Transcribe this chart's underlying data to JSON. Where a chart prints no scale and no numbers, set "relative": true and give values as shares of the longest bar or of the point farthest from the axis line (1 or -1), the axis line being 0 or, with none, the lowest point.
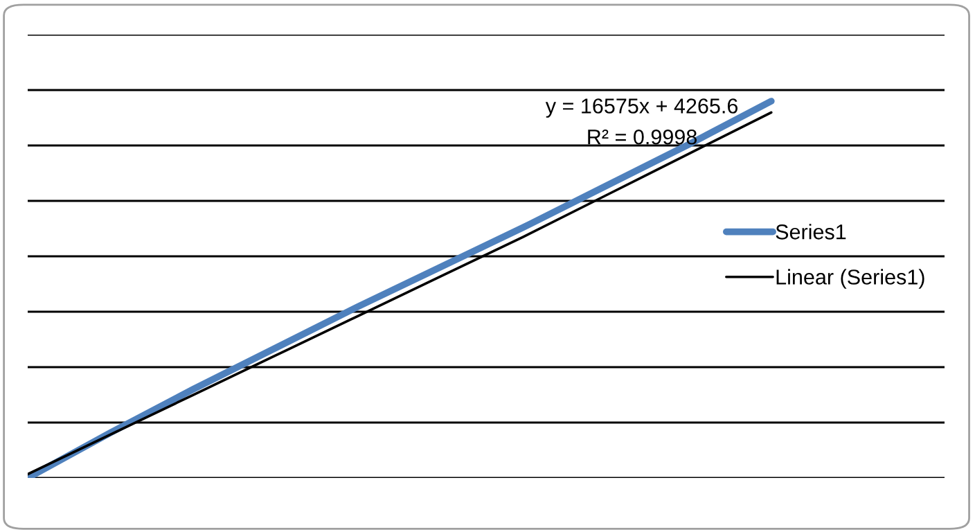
{
  "chart_data": {
    "type": "line",
    "relative": true,
    "categories": [
      null,
      null,
      null,
      null,
      null,
      null,
      null,
      null,
      null,
      null
    ],
    "series": [
      {
        "name": "Series1",
        "color": "#4f81bd",
        "values": [
          0,
          0.12,
          0.235,
          0.345,
          0.455,
          0.56,
          0.665,
          0.775,
          0.885,
          1
        ]
      },
      {
        "name": "Linear (Series1)",
        "color": "#000000",
        "values": [
          0.01,
          0.115,
          0.22,
          0.325,
          0.43,
          0.535,
          0.64,
          0.75,
          0.86,
          0.97
        ]
      }
    ],
    "annotations": [
      "y = 16575x + 4265.6",
      "R² = 0.9998"
    ],
    "grid": true,
    "legend": "right"
  }
}
